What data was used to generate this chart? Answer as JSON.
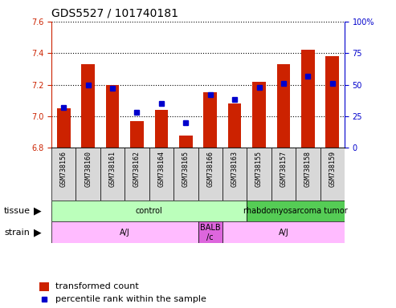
{
  "title": "GDS5527 / 101740181",
  "samples": [
    "GSM738156",
    "GSM738160",
    "GSM738161",
    "GSM738162",
    "GSM738164",
    "GSM738165",
    "GSM738166",
    "GSM738163",
    "GSM738155",
    "GSM738157",
    "GSM738158",
    "GSM738159"
  ],
  "bar_values": [
    7.05,
    7.33,
    7.2,
    6.97,
    7.04,
    6.88,
    7.15,
    7.08,
    7.22,
    7.33,
    7.42,
    7.38
  ],
  "percentile_values": [
    32,
    50,
    47,
    28,
    35,
    20,
    42,
    38,
    48,
    51,
    57,
    51
  ],
  "ylim_left": [
    6.8,
    7.6
  ],
  "ylim_right": [
    0,
    100
  ],
  "yticks_left": [
    6.8,
    7.0,
    7.2,
    7.4,
    7.6
  ],
  "yticks_right": [
    0,
    25,
    50,
    75,
    100
  ],
  "bar_color": "#cc2200",
  "dot_color": "#0000cc",
  "bar_bottom": 6.8,
  "tissue_groups": [
    {
      "label": "control",
      "start": 0,
      "end": 8,
      "color": "#bbffbb"
    },
    {
      "label": "rhabdomyosarcoma tumor",
      "start": 8,
      "end": 12,
      "color": "#55cc55"
    }
  ],
  "strain_groups": [
    {
      "label": "A/J",
      "start": 0,
      "end": 6,
      "color": "#ffbbff"
    },
    {
      "label": "BALB\n/c",
      "start": 6,
      "end": 7,
      "color": "#dd66dd"
    },
    {
      "label": "A/J",
      "start": 7,
      "end": 12,
      "color": "#ffbbff"
    }
  ],
  "legend_bar_color": "#cc2200",
  "legend_dot_color": "#0000cc",
  "left_axis_color": "#cc2200",
  "right_axis_color": "#0000cc",
  "background_color": "#ffffff",
  "xtick_bg_color": "#d8d8d8",
  "title_fontsize": 10,
  "tick_fontsize": 7,
  "sample_fontsize": 6,
  "label_fontsize": 8
}
